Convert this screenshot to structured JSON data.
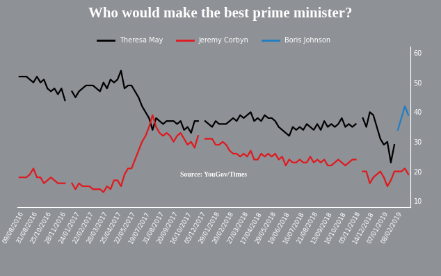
{
  "chart_data": {
    "type": "line",
    "title": "Who would make the best prime minister?",
    "source": "Source: YouGov/Times",
    "categories": [
      "09/08/2016",
      null,
      null,
      null,
      "31/08/2016",
      null,
      null,
      null,
      "25/10/2016",
      null,
      null,
      null,
      "28/11/2016",
      null,
      null,
      null,
      "24/01/2017",
      null,
      null,
      null,
      "22/02/2017",
      null,
      null,
      null,
      "28/03/2017",
      null,
      null,
      null,
      "25/04/2017",
      null,
      null,
      null,
      "22/05/2017",
      null,
      null,
      null,
      "19/07/2017",
      null,
      null,
      null,
      "31/08/2017",
      null,
      null,
      null,
      "20/09/2017",
      null,
      null,
      null,
      "16/10/2017",
      null,
      null,
      null,
      "05/12/2017",
      null,
      null,
      null,
      "29/01/2018",
      null,
      null,
      null,
      "20/02/2018",
      null,
      null,
      null,
      "27/03/2018",
      null,
      null,
      null,
      "17/04/2018",
      null,
      null,
      null,
      "29/05/2018",
      null,
      null,
      null,
      "19/06/2018",
      null,
      null,
      null,
      "16/07/2018",
      null,
      null,
      null,
      "21/08/2018",
      null,
      null,
      null,
      "13/09/2018",
      null,
      null,
      null,
      "16/10/2018",
      null,
      null,
      null,
      "05/11/2018",
      null,
      null,
      null,
      "14/12/2018",
      null,
      null,
      null,
      "07/01/2019",
      null,
      null,
      null,
      "08/02/2019",
      null,
      null,
      null
    ],
    "series": [
      {
        "name": "Theresa May",
        "color": "#000000",
        "values": [
          52,
          52,
          52,
          51,
          50,
          52,
          50,
          51,
          48,
          47,
          48,
          46,
          48,
          44,
          null,
          47,
          45,
          47,
          48,
          49,
          49,
          49,
          48,
          47,
          50,
          48,
          51,
          50,
          51,
          54,
          48,
          49,
          49,
          47,
          45,
          42,
          40,
          38,
          34,
          38,
          37,
          36,
          37,
          37,
          37,
          36,
          37,
          34,
          35,
          33,
          37,
          37,
          null,
          37,
          36,
          35,
          37,
          36,
          36,
          36,
          37,
          38,
          37,
          39,
          38,
          39,
          40,
          37,
          38,
          37,
          39,
          38,
          38,
          37,
          35,
          34,
          33,
          32,
          35,
          34,
          35,
          34,
          36,
          35,
          34,
          36,
          34,
          37,
          35,
          36,
          35,
          36,
          38,
          35,
          36,
          35,
          36,
          null,
          38,
          35,
          40,
          39,
          35,
          31,
          29,
          30,
          23,
          29,
          null,
          null,
          null,
          null
        ]
      },
      {
        "name": "Jeremy Corbyn",
        "color": "#e0191e",
        "values": [
          18,
          18,
          18,
          19,
          21,
          18,
          18,
          16,
          17,
          18,
          17,
          16,
          16,
          16,
          null,
          16,
          14,
          16,
          15,
          15,
          15,
          14,
          14,
          14,
          13,
          15,
          14,
          17,
          17,
          15,
          19,
          21,
          21,
          24,
          27,
          30,
          32,
          35,
          39,
          35,
          33,
          32,
          33,
          32,
          30,
          32,
          33,
          31,
          29,
          30,
          28,
          32,
          null,
          31,
          31,
          31,
          29,
          29,
          30,
          29,
          27,
          26,
          26,
          25,
          26,
          25,
          27,
          24,
          24,
          26,
          25,
          26,
          25,
          26,
          24,
          25,
          22,
          24,
          23,
          23,
          24,
          23,
          23,
          25,
          23,
          24,
          23,
          24,
          22,
          22,
          23,
          24,
          23,
          22,
          23,
          24,
          24,
          null,
          20,
          20,
          16,
          18,
          19,
          20,
          18,
          15,
          17,
          20,
          20,
          20,
          21,
          19
        ]
      },
      {
        "name": "Boris Johnson",
        "color": "#1f7fc4",
        "values": [
          null,
          null,
          null,
          null,
          null,
          null,
          null,
          null,
          null,
          null,
          null,
          null,
          null,
          null,
          null,
          null,
          null,
          null,
          null,
          null,
          null,
          null,
          null,
          null,
          null,
          null,
          null,
          null,
          null,
          null,
          null,
          null,
          null,
          null,
          null,
          null,
          null,
          null,
          null,
          null,
          null,
          null,
          null,
          null,
          null,
          null,
          null,
          null,
          null,
          null,
          null,
          null,
          null,
          null,
          null,
          null,
          null,
          null,
          null,
          null,
          null,
          null,
          null,
          null,
          null,
          null,
          null,
          null,
          null,
          null,
          null,
          null,
          null,
          null,
          null,
          null,
          null,
          null,
          null,
          null,
          null,
          null,
          null,
          null,
          null,
          null,
          null,
          null,
          null,
          null,
          null,
          null,
          null,
          null,
          null,
          null,
          null,
          null,
          null,
          null,
          null,
          null,
          null,
          null,
          null,
          null,
          null,
          null,
          34,
          38,
          42,
          39
        ]
      }
    ],
    "ylim": [
      8,
      62
    ],
    "yticks": [
      10,
      20,
      30,
      40,
      50,
      60
    ],
    "legend": "upper center",
    "grid": false
  }
}
